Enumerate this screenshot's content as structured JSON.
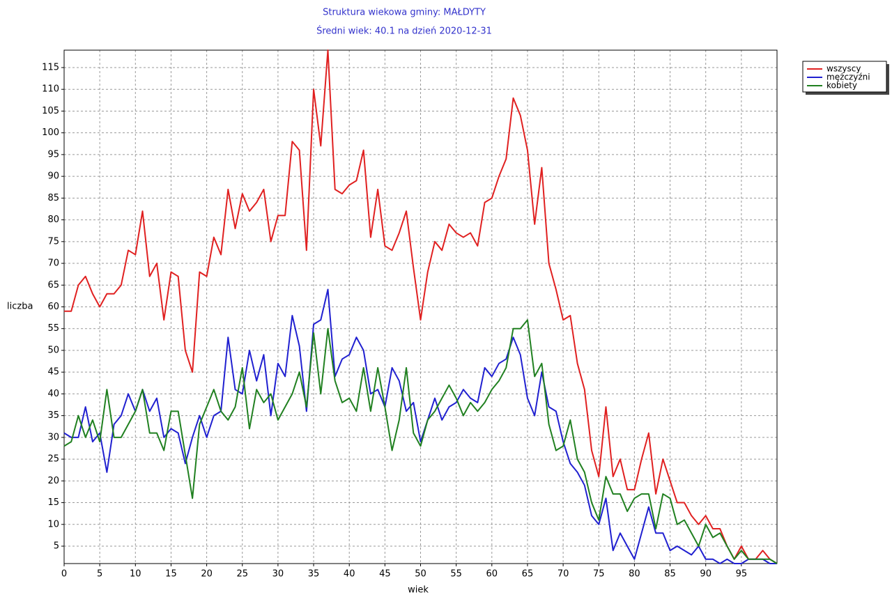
{
  "chart_data": {
    "type": "line",
    "title": "Struktura wiekowa gminy: MAŁDYTY",
    "subtitle": "Średni wiek: 40.1 na dzień 2020-12-31",
    "x_label": "wiek",
    "y_label": "liczba",
    "x": [
      0,
      1,
      2,
      3,
      4,
      5,
      6,
      7,
      8,
      9,
      10,
      11,
      12,
      13,
      14,
      15,
      16,
      17,
      18,
      19,
      20,
      21,
      22,
      23,
      24,
      25,
      26,
      27,
      28,
      29,
      30,
      31,
      32,
      33,
      34,
      35,
      36,
      37,
      38,
      39,
      40,
      41,
      42,
      43,
      44,
      45,
      46,
      47,
      48,
      49,
      50,
      51,
      52,
      53,
      54,
      55,
      56,
      57,
      58,
      59,
      60,
      61,
      62,
      63,
      64,
      65,
      66,
      67,
      68,
      69,
      70,
      71,
      72,
      73,
      74,
      75,
      76,
      77,
      78,
      79,
      80,
      81,
      82,
      83,
      84,
      85,
      86,
      87,
      88,
      89,
      90,
      91,
      92,
      93,
      94,
      95,
      96,
      97,
      98,
      99,
      100
    ],
    "series": [
      {
        "name": "wszyscy",
        "color": "#e02020",
        "values": [
          59,
          59,
          65,
          67,
          63,
          60,
          63,
          63,
          65,
          73,
          72,
          82,
          67,
          70,
          57,
          68,
          67,
          50,
          45,
          68,
          67,
          76,
          72,
          87,
          78,
          86,
          82,
          84,
          87,
          75,
          81,
          81,
          98,
          96,
          73,
          110,
          97,
          119,
          87,
          86,
          88,
          89,
          96,
          76,
          87,
          74,
          73,
          77,
          82,
          69,
          57,
          68,
          75,
          73,
          79,
          77,
          76,
          77,
          74,
          84,
          85,
          90,
          94,
          108,
          104,
          96,
          79,
          92,
          70,
          64,
          57,
          58,
          47,
          41,
          27,
          21,
          37,
          21,
          25,
          18,
          18,
          25,
          31,
          17,
          25,
          20,
          15,
          15,
          12,
          10,
          12,
          9,
          9,
          5,
          2,
          5,
          2,
          2,
          4,
          2,
          1
        ]
      },
      {
        "name": "mężczyźni",
        "color": "#2020d0",
        "values": [
          31,
          30,
          30,
          37,
          29,
          31,
          22,
          33,
          35,
          40,
          36,
          41,
          36,
          39,
          30,
          32,
          31,
          24,
          30,
          35,
          30,
          35,
          36,
          53,
          41,
          40,
          50,
          43,
          49,
          35,
          47,
          44,
          58,
          51,
          36,
          56,
          57,
          64,
          44,
          48,
          49,
          53,
          50,
          40,
          41,
          37,
          46,
          43,
          36,
          38,
          29,
          34,
          39,
          34,
          37,
          38,
          41,
          39,
          38,
          46,
          44,
          47,
          48,
          53,
          49,
          39,
          35,
          45,
          37,
          36,
          29,
          24,
          22,
          19,
          12,
          10,
          16,
          4,
          8,
          5,
          2,
          8,
          14,
          8,
          8,
          4,
          5,
          4,
          3,
          5,
          2,
          2,
          1,
          2,
          1,
          1,
          2,
          2,
          2,
          1,
          1
        ]
      },
      {
        "name": "kobiety",
        "color": "#208020",
        "values": [
          28,
          29,
          35,
          30,
          34,
          29,
          41,
          30,
          30,
          33,
          36,
          41,
          31,
          31,
          27,
          36,
          36,
          26,
          16,
          33,
          37,
          41,
          36,
          34,
          37,
          46,
          32,
          41,
          38,
          40,
          34,
          37,
          40,
          45,
          37,
          54,
          40,
          55,
          43,
          38,
          39,
          36,
          46,
          36,
          46,
          37,
          27,
          34,
          46,
          31,
          28,
          34,
          36,
          39,
          42,
          39,
          35,
          38,
          36,
          38,
          41,
          43,
          46,
          55,
          55,
          57,
          44,
          47,
          33,
          27,
          28,
          34,
          25,
          22,
          15,
          11,
          21,
          17,
          17,
          13,
          16,
          17,
          17,
          9,
          17,
          16,
          10,
          11,
          8,
          5,
          10,
          7,
          8,
          5,
          2,
          4,
          2,
          2,
          2,
          2,
          1
        ]
      }
    ],
    "xlim": [
      0,
      100
    ],
    "ylim": [
      1,
      119
    ],
    "xticks": [
      0,
      5,
      10,
      15,
      20,
      25,
      30,
      35,
      40,
      45,
      50,
      55,
      60,
      65,
      70,
      75,
      80,
      85,
      90,
      95
    ],
    "yticks": [
      5,
      10,
      15,
      20,
      25,
      30,
      35,
      40,
      45,
      50,
      55,
      60,
      65,
      70,
      75,
      80,
      85,
      90,
      95,
      100,
      105,
      110,
      115
    ],
    "grid": true,
    "legend": "top-right-outside"
  }
}
